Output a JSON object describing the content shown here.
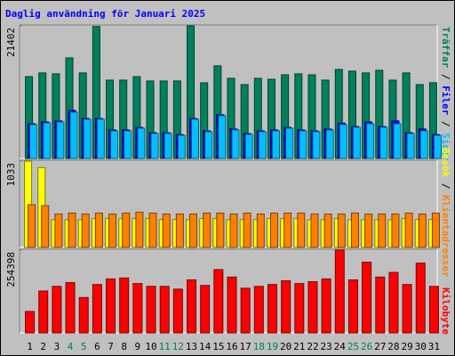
{
  "title": "Daglig användning för Januari 2025",
  "legend_separator": " / ",
  "highlight_color": "#00805c",
  "highlight_categories": [
    "4",
    "5",
    "11",
    "12",
    "18",
    "19",
    "25",
    "26"
  ],
  "chart_data": [
    {
      "type": "bar",
      "categories": [
        "1",
        "2",
        "3",
        "4",
        "5",
        "6",
        "7",
        "8",
        "9",
        "10",
        "11",
        "12",
        "13",
        "14",
        "15",
        "16",
        "17",
        "18",
        "19",
        "20",
        "21",
        "22",
        "23",
        "24",
        "25",
        "26",
        "27",
        "28",
        "29",
        "30",
        "31"
      ],
      "ylim": [
        0,
        21402
      ],
      "yticks": [
        21402
      ],
      "series": [
        {
          "name": "Träffar",
          "color": "#00805c",
          "values": [
            13200,
            13800,
            13650,
            16230,
            13800,
            21300,
            12640,
            12640,
            13200,
            12500,
            12500,
            12500,
            21402,
            12200,
            14940,
            12930,
            11920,
            12930,
            12780,
            13500,
            13650,
            13500,
            12640,
            14360,
            14080,
            13800,
            14220,
            12640,
            13800,
            11920,
            12220
          ]
        },
        {
          "name": "Filer",
          "color": "#0000ff",
          "values": [
            5600,
            5900,
            6050,
            7750,
            6450,
            6450,
            4600,
            4600,
            5000,
            4150,
            4150,
            3850,
            6450,
            4450,
            7050,
            4750,
            4000,
            4450,
            4600,
            5000,
            4600,
            4450,
            4750,
            5700,
            5150,
            5900,
            5150,
            6050,
            4150,
            4750,
            3850
          ]
        },
        {
          "name": "Sidor",
          "color": "#00c0ff",
          "values": [
            5460,
            5750,
            5890,
            7470,
            6320,
            6320,
            4450,
            4450,
            4880,
            4020,
            4020,
            3730,
            6320,
            4310,
            6900,
            4600,
            3880,
            4310,
            4450,
            4880,
            4450,
            4310,
            4600,
            5460,
            5030,
            5600,
            5030,
            5600,
            4020,
            4450,
            3730
          ]
        }
      ]
    },
    {
      "type": "bar",
      "ylim": [
        0,
        1033
      ],
      "yticks": [
        1033
      ],
      "series": [
        {
          "name": "Besök",
          "color": "#ffff00",
          "values": [
            1033,
            955,
            333,
            333,
            333,
            345,
            345,
            345,
            345,
            345,
            333,
            333,
            333,
            345,
            345,
            333,
            333,
            333,
            345,
            345,
            345,
            333,
            333,
            345,
            333,
            333,
            333,
            333,
            345,
            333,
            333
          ]
        },
        {
          "name": "Klientadresser",
          "color": "#ff8000",
          "values": [
            511,
            500,
            400,
            411,
            400,
            411,
            400,
            411,
            422,
            411,
            400,
            400,
            400,
            411,
            411,
            400,
            411,
            400,
            411,
            411,
            411,
            400,
            400,
            400,
            411,
            400,
            400,
            400,
            411,
            400,
            411
          ]
        }
      ]
    },
    {
      "type": "bar",
      "ylim": [
        0,
        254398
      ],
      "yticks": [
        254398
      ],
      "series": [
        {
          "name": "Kilobyte",
          "color": "#ff0000",
          "values": [
            65700,
            128600,
            142900,
            154400,
            108600,
            148600,
            165800,
            168600,
            151500,
            142900,
            142900,
            134300,
            162900,
            145800,
            194400,
            171500,
            137200,
            142900,
            148600,
            160100,
            151500,
            157200,
            165800,
            254398,
            162900,
            217200,
            171500,
            185800,
            148600,
            214400,
            142900
          ]
        }
      ]
    }
  ]
}
